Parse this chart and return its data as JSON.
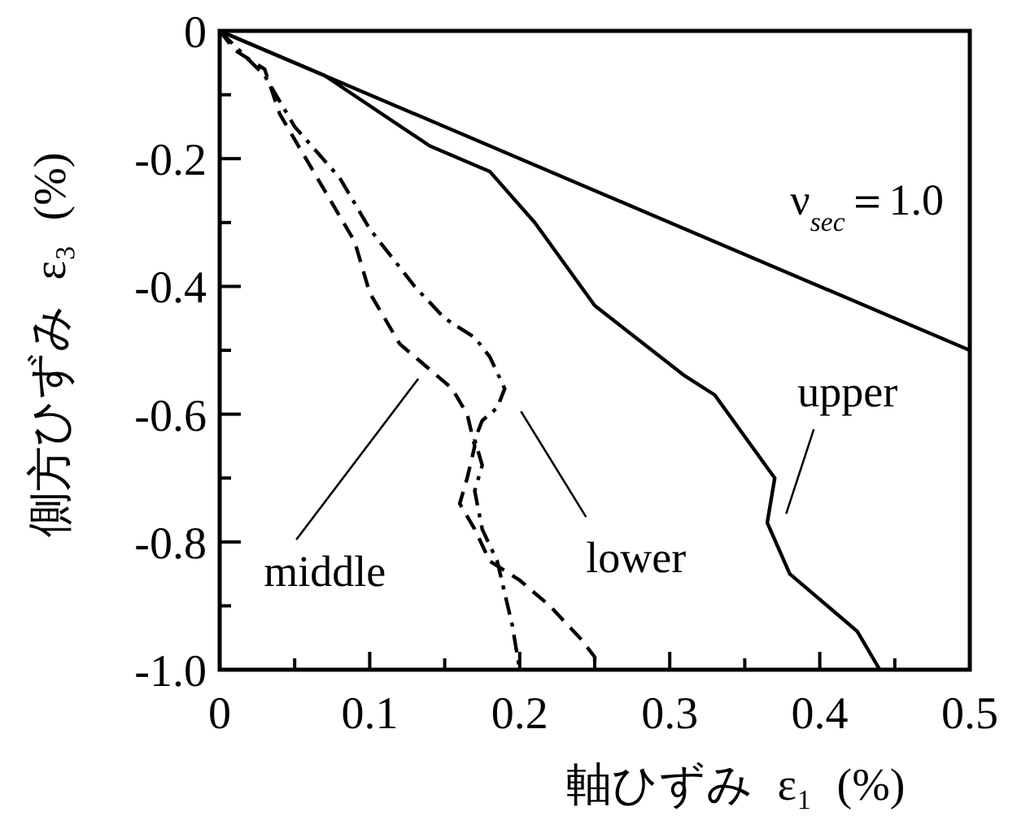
{
  "chart_data": {
    "type": "line",
    "xlabel": "軸ひずみ ε₁ (%)",
    "ylabel": "側方ひずみ ε₃ (%)",
    "xlim": [
      0,
      0.5
    ],
    "ylim": [
      -1,
      0
    ],
    "xticks": [
      0,
      {
        "value": 0.05,
        "label": null
      },
      0.1,
      {
        "value": 0.15,
        "label": null
      },
      0.2,
      {
        "value": 0.25,
        "label": null
      },
      0.3,
      {
        "value": 0.35,
        "label": null
      },
      0.4,
      {
        "value": 0.45,
        "label": null
      },
      0.5
    ],
    "yticks": [
      {
        "value": -1,
        "label": "-1.0"
      },
      {
        "value": -0.9,
        "label": null
      },
      -0.8,
      {
        "value": -0.7,
        "label": null
      },
      -0.6,
      {
        "value": -0.5,
        "label": null
      },
      -0.4,
      {
        "value": -0.3,
        "label": null
      },
      -0.2,
      {
        "value": -0.1,
        "label": null
      },
      0
    ],
    "series": [
      {
        "name": "upper",
        "color": "#000000",
        "line_style": "solid",
        "x": [
          0,
          0.07,
          0.14,
          0.18,
          0.21,
          0.25,
          0.31,
          0.33,
          0.37,
          0.365,
          0.38,
          0.41,
          0.425,
          0.44
        ],
        "values": [
          0,
          -0.07,
          -0.18,
          -0.22,
          -0.3,
          -0.43,
          -0.54,
          -0.57,
          -0.7,
          -0.77,
          -0.85,
          -0.91,
          -0.94,
          -1.0
        ]
      },
      {
        "name": "middle",
        "color": "#000000",
        "line_style": "dashed",
        "x": [
          0,
          0.01,
          0.03,
          0.04,
          0.07,
          0.09,
          0.1,
          0.12,
          0.14,
          0.155,
          0.165,
          0.17,
          0.165,
          0.16,
          0.17,
          0.18,
          0.2,
          0.22,
          0.24,
          0.25,
          0.25
        ],
        "values": [
          0,
          -0.03,
          -0.06,
          -0.13,
          -0.25,
          -0.33,
          -0.41,
          -0.49,
          -0.53,
          -0.56,
          -0.6,
          -0.65,
          -0.7,
          -0.74,
          -0.78,
          -0.83,
          -0.86,
          -0.9,
          -0.95,
          -0.98,
          -1.0
        ]
      },
      {
        "name": "lower",
        "color": "#000000",
        "line_style": "dashdot",
        "x": [
          0,
          0.03,
          0.05,
          0.08,
          0.1,
          0.13,
          0.15,
          0.17,
          0.18,
          0.19,
          0.185,
          0.175,
          0.17,
          0.175,
          0.17,
          0.175,
          0.185,
          0.19,
          0.195,
          0.2
        ],
        "values": [
          0,
          -0.07,
          -0.15,
          -0.23,
          -0.31,
          -0.4,
          -0.45,
          -0.48,
          -0.51,
          -0.56,
          -0.59,
          -0.61,
          -0.64,
          -0.68,
          -0.72,
          -0.78,
          -0.83,
          -0.88,
          -0.93,
          -1.0
        ]
      },
      {
        "name": "ν$_{sec}$＝1.0",
        "color": "#000000",
        "line_style": "solid",
        "x": [
          0,
          0.5
        ],
        "values": [
          0,
          -0.5
        ]
      }
    ]
  }
}
